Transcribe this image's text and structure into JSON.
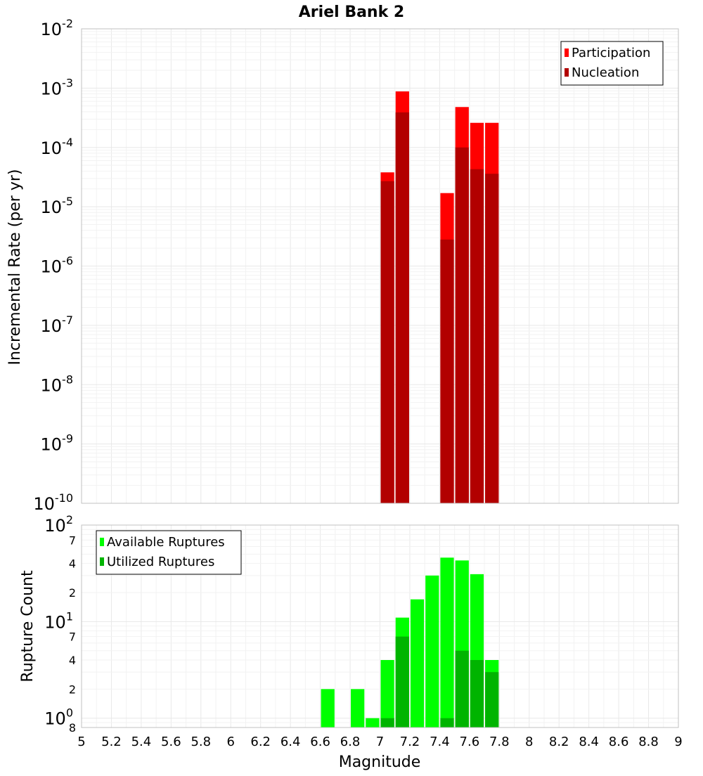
{
  "title": "Ariel Bank 2",
  "colors": {
    "participation": "#ff0000",
    "nucleation": "#b20000",
    "available": "#00ff00",
    "utilized": "#00b400",
    "grid_major": "#e8e8e8",
    "grid_minor": "#f2f2f2",
    "axis_border": "#c0c0c0"
  },
  "chart_data": [
    {
      "type": "bar",
      "title": "Ariel Bank 2",
      "xlabel": "",
      "ylabel": "Incremental Rate (per yr)",
      "xlim": [
        5,
        9
      ],
      "ylim": [
        1e-10,
        0.01
      ],
      "yscale": "log",
      "grid": true,
      "legend_position": "top-right",
      "bar_width": 0.1,
      "y_ticks": [
        {
          "base": "10",
          "exp": "-10"
        },
        {
          "base": "10",
          "exp": "-9"
        },
        {
          "base": "10",
          "exp": "-8"
        },
        {
          "base": "10",
          "exp": "-7"
        },
        {
          "base": "10",
          "exp": "-6"
        },
        {
          "base": "10",
          "exp": "-5"
        },
        {
          "base": "10",
          "exp": "-4"
        },
        {
          "base": "10",
          "exp": "-3"
        },
        {
          "base": "10",
          "exp": "-2"
        }
      ],
      "series": [
        {
          "name": "Participation",
          "color": "#ff0000",
          "points": [
            {
              "x": 7.05,
              "y": 3.8e-05
            },
            {
              "x": 7.15,
              "y": 0.00088
            },
            {
              "x": 7.45,
              "y": 1.7e-05
            },
            {
              "x": 7.55,
              "y": 0.00048
            },
            {
              "x": 7.65,
              "y": 0.00026
            },
            {
              "x": 7.75,
              "y": 0.00026
            }
          ]
        },
        {
          "name": "Nucleation",
          "color": "#b20000",
          "points": [
            {
              "x": 7.05,
              "y": 2.7e-05
            },
            {
              "x": 7.15,
              "y": 0.00039
            },
            {
              "x": 7.45,
              "y": 2.8e-06
            },
            {
              "x": 7.55,
              "y": 0.0001
            },
            {
              "x": 7.65,
              "y": 4.3e-05
            },
            {
              "x": 7.75,
              "y": 3.6e-05
            }
          ]
        }
      ]
    },
    {
      "type": "bar",
      "title": "",
      "xlabel": "Magnitude",
      "ylabel": "Rupture Count",
      "xlim": [
        5,
        9
      ],
      "ylim": [
        0.8,
        100
      ],
      "yscale": "log",
      "grid": true,
      "legend_position": "top-left",
      "bar_width": 0.1,
      "x_ticks": [
        "5",
        "5.2",
        "5.4",
        "5.6",
        "5.8",
        "6",
        "6.2",
        "6.4",
        "6.6",
        "6.8",
        "7",
        "7.2",
        "7.4",
        "7.6",
        "7.8",
        "8",
        "8.2",
        "8.4",
        "8.6",
        "8.8",
        "9"
      ],
      "y_major_ticks": [
        {
          "value": 1,
          "base": "10",
          "exp": "0"
        },
        {
          "value": 10,
          "base": "10",
          "exp": "1"
        },
        {
          "value": 100,
          "base": "10",
          "exp": "2"
        }
      ],
      "y_minor_ticks": [
        {
          "value": 0.8,
          "label": "8"
        },
        {
          "value": 2,
          "label": "2"
        },
        {
          "value": 4,
          "label": "4"
        },
        {
          "value": 7,
          "label": "7"
        },
        {
          "value": 20,
          "label": "2"
        },
        {
          "value": 40,
          "label": "4"
        },
        {
          "value": 70,
          "label": "7"
        }
      ],
      "series": [
        {
          "name": "Available Ruptures",
          "color": "#00ff00",
          "points": [
            {
              "x": 6.65,
              "y": 2
            },
            {
              "x": 6.85,
              "y": 2
            },
            {
              "x": 6.95,
              "y": 1
            },
            {
              "x": 7.05,
              "y": 4
            },
            {
              "x": 7.15,
              "y": 11
            },
            {
              "x": 7.25,
              "y": 17
            },
            {
              "x": 7.35,
              "y": 30
            },
            {
              "x": 7.45,
              "y": 46
            },
            {
              "x": 7.55,
              "y": 43
            },
            {
              "x": 7.65,
              "y": 31
            },
            {
              "x": 7.75,
              "y": 4
            }
          ]
        },
        {
          "name": "Utilized Ruptures",
          "color": "#00b400",
          "points": [
            {
              "x": 7.05,
              "y": 1
            },
            {
              "x": 7.15,
              "y": 7
            },
            {
              "x": 7.45,
              "y": 1
            },
            {
              "x": 7.55,
              "y": 5
            },
            {
              "x": 7.65,
              "y": 4
            },
            {
              "x": 7.75,
              "y": 3
            }
          ]
        }
      ]
    }
  ]
}
